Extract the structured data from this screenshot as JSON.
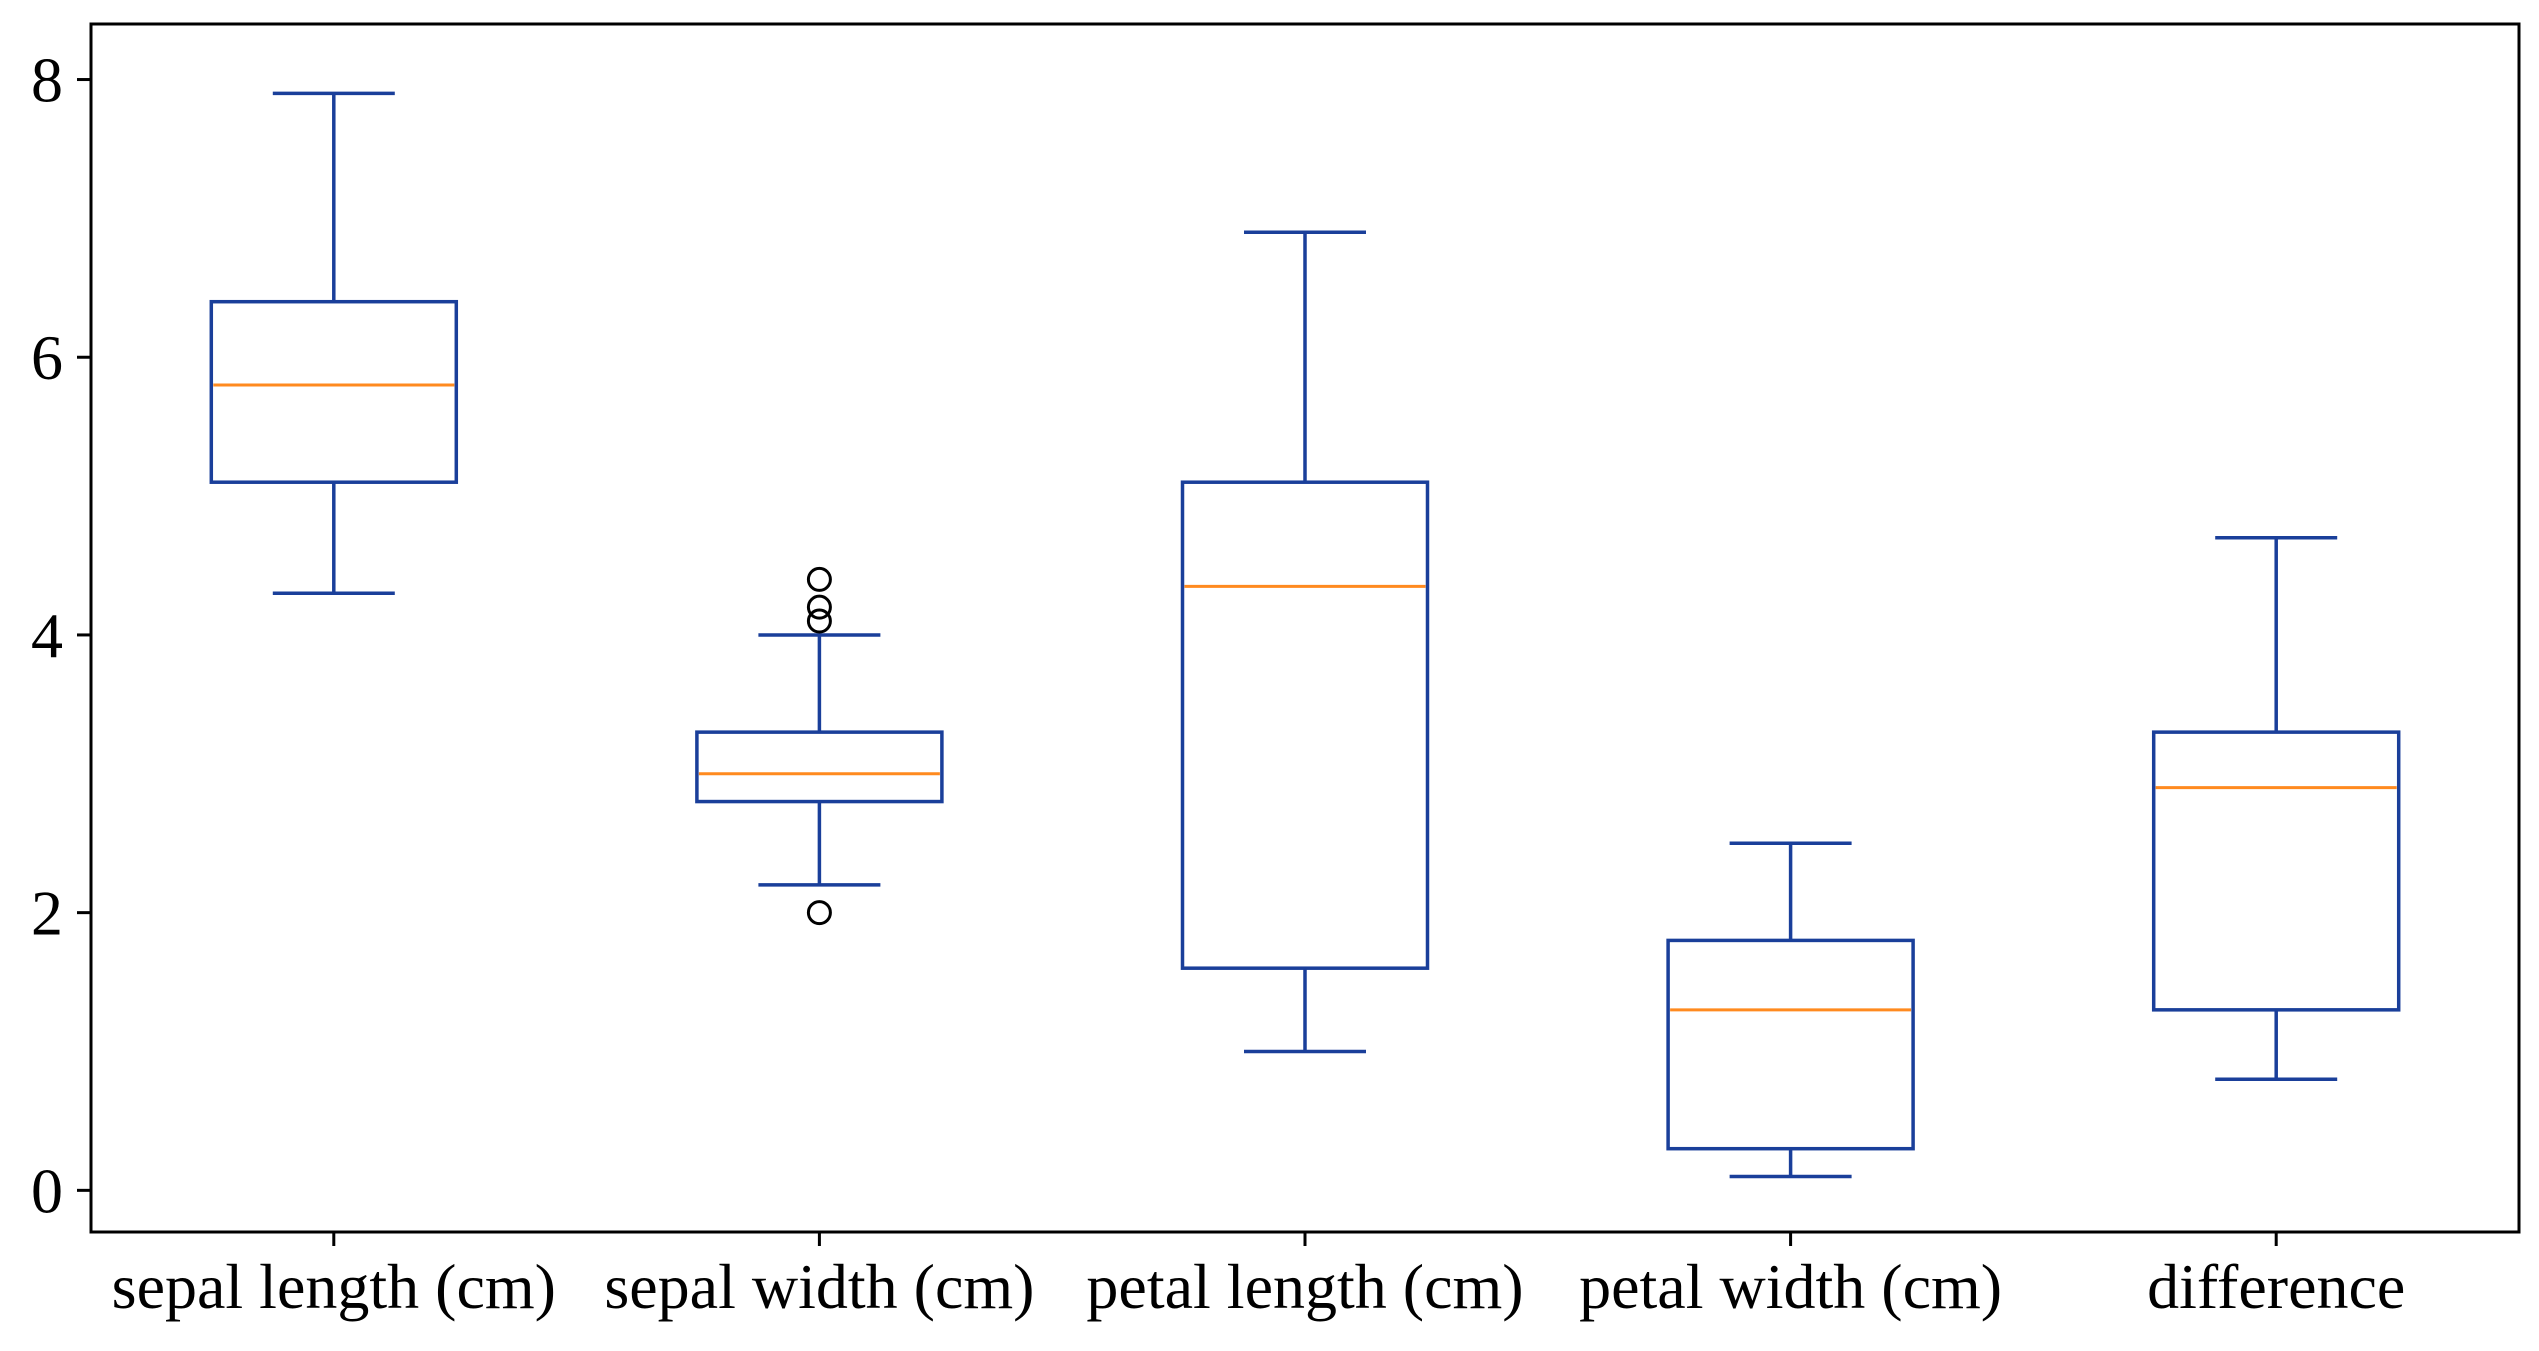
{
  "chart_data": {
    "type": "boxplot",
    "title": "",
    "xlabel": "",
    "ylabel": "",
    "ylim": [
      -0.3,
      8.4
    ],
    "yticks": [
      0,
      2,
      4,
      6,
      8
    ],
    "categories": [
      "sepal length (cm)",
      "sepal width (cm)",
      "petal length (cm)",
      "petal width (cm)",
      "difference"
    ],
    "boxes": [
      {
        "category": "sepal length (cm)",
        "whisker_low": 4.3,
        "q1": 5.1,
        "median": 5.8,
        "q3": 6.4,
        "whisker_high": 7.9,
        "outliers": []
      },
      {
        "category": "sepal width (cm)",
        "whisker_low": 2.2,
        "q1": 2.8,
        "median": 3.0,
        "q3": 3.3,
        "whisker_high": 4.0,
        "outliers": [
          2.0,
          4.1,
          4.2,
          4.4
        ]
      },
      {
        "category": "petal length (cm)",
        "whisker_low": 1.0,
        "q1": 1.6,
        "median": 4.35,
        "q3": 5.1,
        "whisker_high": 6.9,
        "outliers": []
      },
      {
        "category": "petal width (cm)",
        "whisker_low": 0.1,
        "q1": 0.3,
        "median": 1.3,
        "q3": 1.8,
        "whisker_high": 2.5,
        "outliers": []
      },
      {
        "category": "difference",
        "whisker_low": 0.8,
        "q1": 1.3,
        "median": 2.9,
        "q3": 3.3,
        "whisker_high": 4.7,
        "outliers": []
      }
    ],
    "colors": {
      "box": "#1a3f9a",
      "median": "#ff8a1f",
      "outlier": "#000000",
      "axes": "#000000"
    },
    "grid": false,
    "legend": "none"
  }
}
